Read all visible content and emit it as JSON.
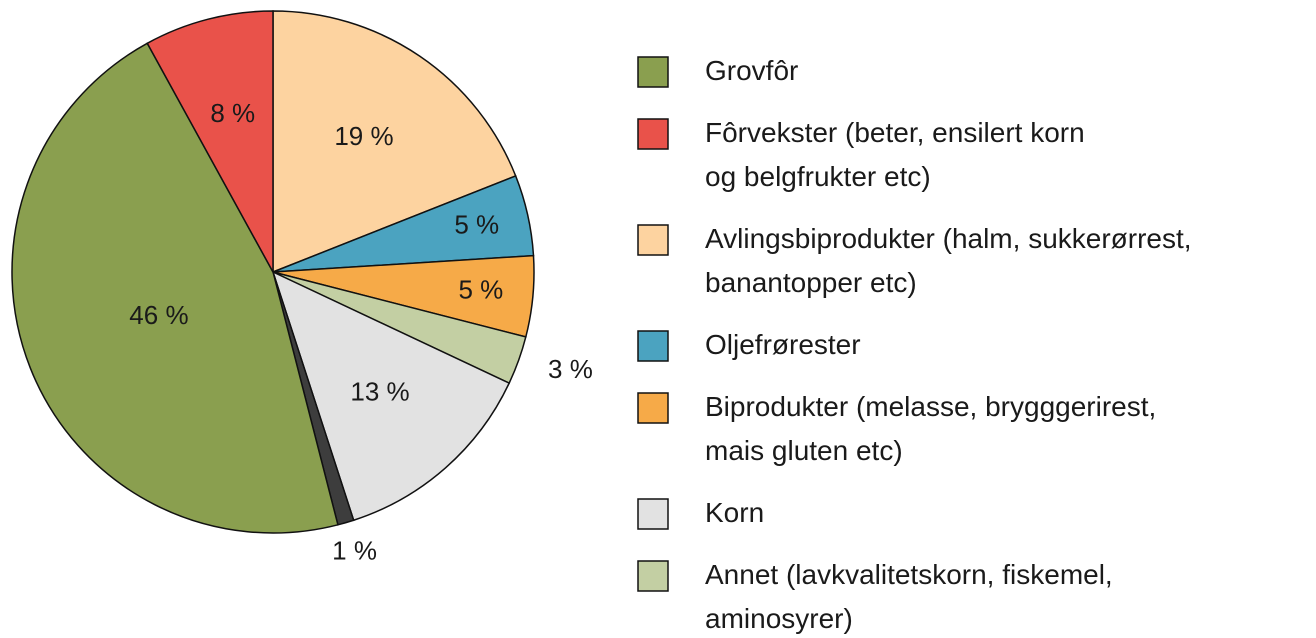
{
  "chart_data": {
    "type": "pie",
    "categories": [
      [
        "Avlingsbiprodukter (halm, sukkerørrest,",
        "banantopper etc)"
      ],
      [
        "Oljefrørester"
      ],
      [
        "Biprodukter (melasse, brygggerirest,",
        "mais gluten etc)"
      ],
      [
        "Annet (lavkvalitetskorn, fiskemel,",
        "aminosyrer)"
      ],
      [
        "Korn"
      ],
      null,
      [
        "Grovfôr"
      ],
      [
        "Fôrvekster (beter, ensilert korn",
        "og belgfrukter etc)"
      ]
    ],
    "values": [
      19,
      5,
      5,
      3,
      13,
      1,
      46,
      8
    ],
    "value_labels": [
      "19 %",
      "5 %",
      "5 %",
      "3 %",
      "13 %",
      "1 %",
      "46 %",
      "8 %"
    ],
    "colors": [
      "#fdd3a0",
      "#4ba3c0",
      "#f6aa48",
      "#c3cfa3",
      "#e2e2e2",
      "#3d3d3d",
      "#8a9f4f",
      "#e9524a"
    ]
  }
}
